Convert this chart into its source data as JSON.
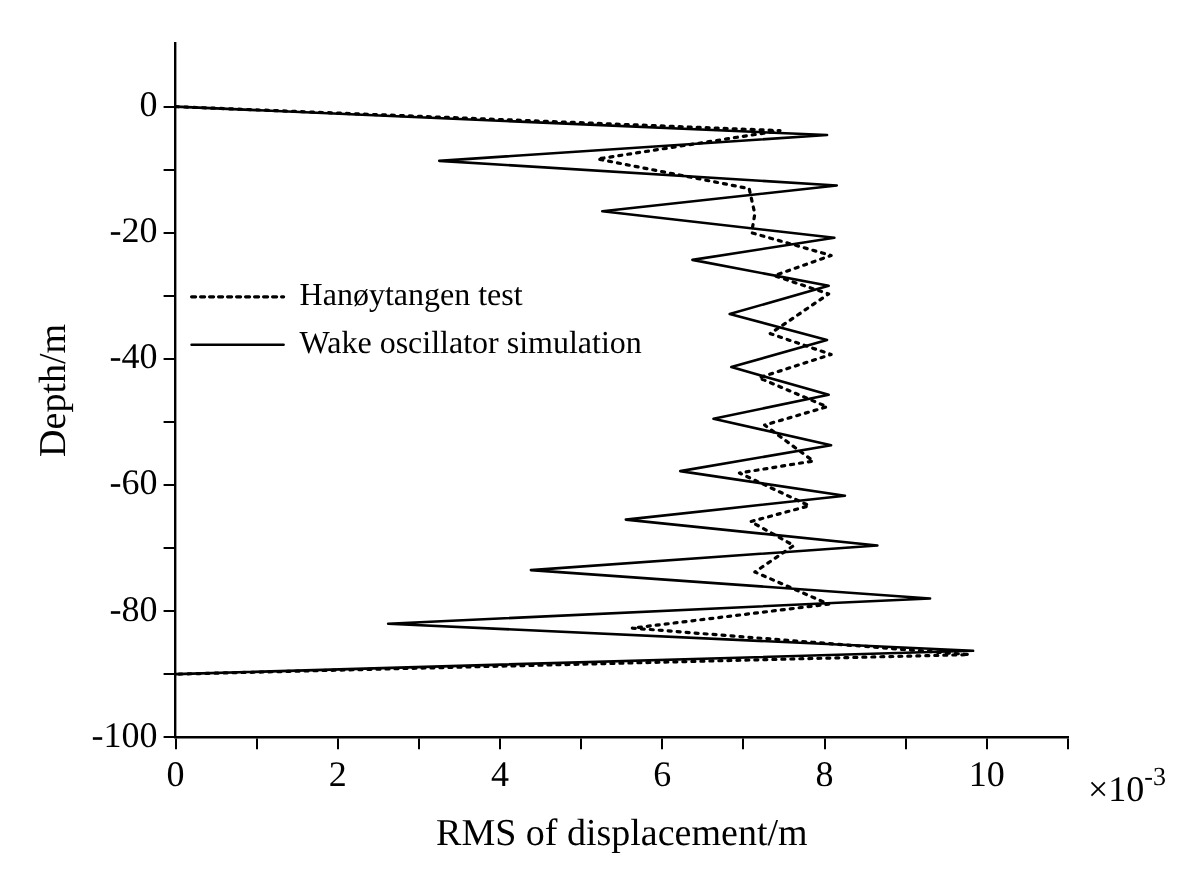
{
  "chart_data": {
    "type": "line",
    "xlabel": "RMS of displacement/m",
    "ylabel": "Depth/m",
    "xlim": [
      0,
      11
    ],
    "ylim": [
      -100,
      10
    ],
    "xticks": [
      0,
      {
        "value": 1,
        "label": null
      },
      2,
      {
        "value": 3,
        "label": null
      },
      4,
      {
        "value": 5,
        "label": null
      },
      6,
      {
        "value": 7,
        "label": null
      },
      8,
      {
        "value": 9,
        "label": null
      },
      10,
      {
        "value": 11,
        "label": null
      }
    ],
    "yticks": [
      -100,
      {
        "value": -90,
        "label": null
      },
      -80,
      {
        "value": -70,
        "label": null
      },
      -60,
      {
        "value": -50,
        "label": null
      },
      -40,
      {
        "value": -30,
        "label": null
      },
      -20,
      {
        "value": -10,
        "label": null
      },
      0
    ],
    "grid": false,
    "legend": "top left",
    "marker": "none",
    "annotations": [
      "×10$^{-3}$"
    ],
    "series": [
      {
        "name": "Hanøytangen test",
        "color": "#000000",
        "line_style": "dotted",
        "x": [
          0,
          7.45,
          5.2,
          7.07,
          7.14,
          7.1,
          8.08,
          7.38,
          8.05,
          7.33,
          8.08,
          7.19,
          8.03,
          7.26,
          7.86,
          6.95,
          7.81,
          7.09,
          7.62,
          7.14,
          8.05,
          5.63,
          9.78,
          0
        ],
        "values": [
          0,
          -3.8,
          -8.3,
          -13,
          -17,
          -20,
          -23.6,
          -26.8,
          -29.7,
          -36,
          -39.3,
          -43,
          -47.6,
          -50.5,
          -56.2,
          -58.1,
          -63.3,
          -65.8,
          -69.6,
          -73.8,
          -78.9,
          -82.7,
          -86.9,
          -90
        ]
      },
      {
        "name": "Wake oscillator simulation",
        "color": "#000000",
        "line_style": "solid",
        "x": [
          0,
          8.03,
          3.25,
          8.15,
          5.26,
          8.12,
          6.37,
          8.05,
          6.83,
          8.03,
          6.85,
          8.05,
          6.63,
          8.08,
          6.22,
          8.25,
          5.55,
          8.65,
          4.38,
          9.3,
          2.62,
          9.83,
          0
        ],
        "values": [
          0,
          -4.5,
          -8.6,
          -12.5,
          -16.6,
          -20.8,
          -24.3,
          -28.4,
          -32.9,
          -37,
          -41.3,
          -45.7,
          -49.5,
          -53.7,
          -57.8,
          -61.7,
          -65.5,
          -69.6,
          -73.5,
          -78,
          -82,
          -86.3,
          -90
        ]
      }
    ]
  }
}
